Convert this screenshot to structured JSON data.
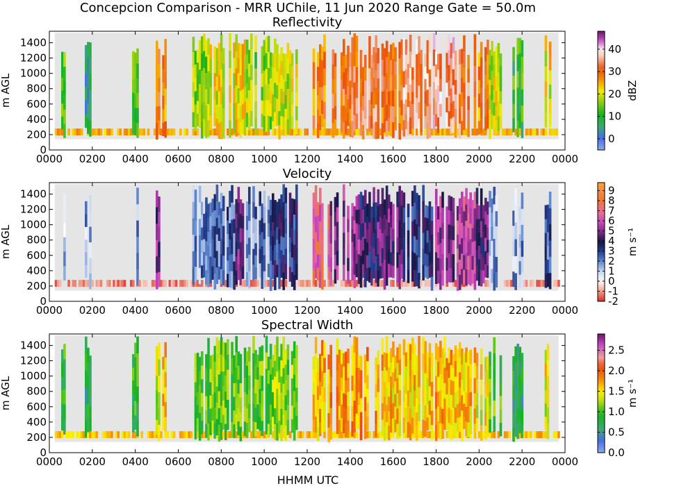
{
  "figure": {
    "title": "Concepcion Comparison - MRR UChile, 11 Jun 2020 Range Gate = 50.0m",
    "xlabel": "HHMM UTC"
  },
  "chart_data": [
    {
      "type": "heatmap",
      "title": "Reflectivity",
      "ylabel": "m AGL",
      "xticks": [
        "0000",
        "0200",
        "0400",
        "0600",
        "0800",
        "1000",
        "1200",
        "1400",
        "1600",
        "1800",
        "2000",
        "2200",
        "0000"
      ],
      "yticks": [
        "0",
        "200",
        "400",
        "600",
        "800",
        "1000",
        "1200",
        "1400"
      ],
      "xlim": [
        0,
        24
      ],
      "ylim": [
        0,
        1550
      ],
      "colorbar": {
        "label": "dBZ",
        "range": [
          -5,
          48
        ],
        "ticks": [
          "0",
          "10",
          "20",
          "30",
          "40"
        ],
        "tick_values": [
          0,
          10,
          20,
          30,
          40
        ]
      },
      "background_color": "#e5e5e5"
    },
    {
      "type": "heatmap",
      "title": "Velocity",
      "ylabel": "m AGL",
      "xticks": [
        "0000",
        "0200",
        "0400",
        "0600",
        "0800",
        "1000",
        "1200",
        "1400",
        "1600",
        "1800",
        "2000",
        "2200",
        "0000"
      ],
      "yticks": [
        "0",
        "200",
        "400",
        "600",
        "800",
        "1000",
        "1200",
        "1400"
      ],
      "xlim": [
        0,
        24
      ],
      "ylim": [
        0,
        1550
      ],
      "colorbar": {
        "label": "m s⁻¹",
        "range": [
          -2,
          9.8
        ],
        "ticks": [
          "-2",
          "-1",
          "0",
          "1",
          "2",
          "3",
          "4",
          "5",
          "6",
          "7",
          "8",
          "9"
        ],
        "tick_values": [
          -2,
          -1,
          0,
          1,
          2,
          3,
          4,
          5,
          6,
          7,
          8,
          9
        ]
      },
      "background_color": "#e5e5e5"
    },
    {
      "type": "heatmap",
      "title": "Spectral Width",
      "ylabel": "m AGL",
      "xticks": [
        "0000",
        "0200",
        "0400",
        "0600",
        "0800",
        "1000",
        "1200",
        "1400",
        "1600",
        "1800",
        "2000",
        "2200",
        "0000"
      ],
      "yticks": [
        "0",
        "200",
        "400",
        "600",
        "800",
        "1000",
        "1200",
        "1400"
      ],
      "xlim": [
        0,
        24
      ],
      "ylim": [
        0,
        1550
      ],
      "colorbar": {
        "label": "m s⁻¹",
        "range": [
          0,
          2.9
        ],
        "ticks": [
          "0.0",
          "0.5",
          "1.0",
          "1.5",
          "2.0",
          "2.5"
        ],
        "tick_values": [
          0,
          0.5,
          1.0,
          1.5,
          2.0,
          2.5
        ]
      },
      "background_color": "#e5e5e5"
    }
  ]
}
